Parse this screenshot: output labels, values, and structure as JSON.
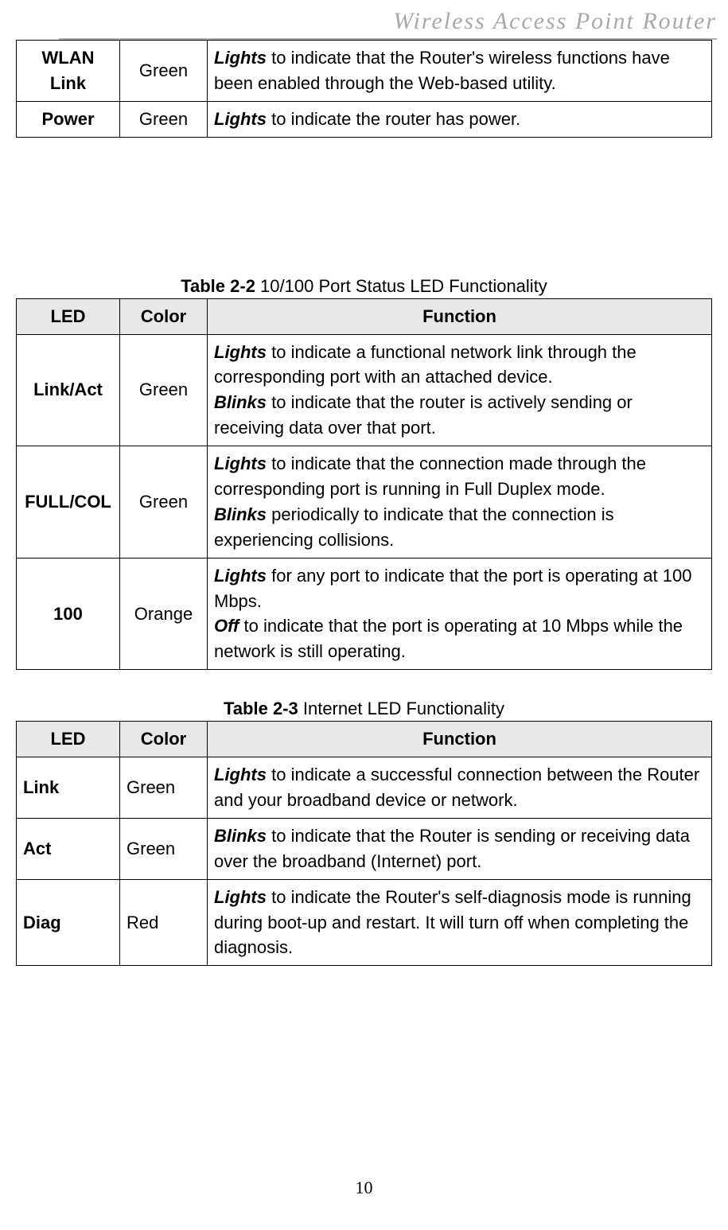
{
  "header": {
    "title": "Wireless  Access  Point  Router"
  },
  "table1": {
    "rows": [
      {
        "led": "WLAN Link",
        "color": "Green",
        "func": [
          {
            "style": "bi",
            "text": "Lights"
          },
          {
            "style": "",
            "text": " to indicate that the Router's wireless functions have been enabled through the Web-based utility."
          }
        ]
      },
      {
        "led": "Power",
        "color": "Green",
        "func": [
          {
            "style": "bi",
            "text": "Lights"
          },
          {
            "style": "",
            "text": " to indicate the router has power."
          }
        ]
      }
    ]
  },
  "table2": {
    "caption_label": "Table 2-2",
    "caption_text": " 10/100 Port Status LED Functionality",
    "headers": {
      "led": "LED",
      "color": "Color",
      "func": "Function"
    },
    "rows": [
      {
        "led": "Link/Act",
        "color": "Green",
        "func": [
          {
            "style": "bi",
            "text": "Lights"
          },
          {
            "style": "",
            "text": " to indicate a functional network link through the corresponding port with an attached device."
          },
          {
            "style": "br",
            "text": ""
          },
          {
            "style": "bi",
            "text": "Blinks"
          },
          {
            "style": "",
            "text": " to indicate that the router is actively sending or receiving data over that port."
          }
        ]
      },
      {
        "led": "FULL/COL",
        "color": "Green",
        "func": [
          {
            "style": "bi",
            "text": "Lights"
          },
          {
            "style": "",
            "text": " to indicate that the connection made through the corresponding port is running in Full Duplex mode."
          },
          {
            "style": "br",
            "text": ""
          },
          {
            "style": "bi",
            "text": "Blinks"
          },
          {
            "style": "",
            "text": " periodically to indicate that the connection is experiencing collisions."
          }
        ]
      },
      {
        "led": "100",
        "color": "Orange",
        "func": [
          {
            "style": "bi",
            "text": "Lights"
          },
          {
            "style": "",
            "text": " for any port to indicate that the port is operating at 100 Mbps."
          },
          {
            "style": "br",
            "text": ""
          },
          {
            "style": "bi",
            "text": "Off"
          },
          {
            "style": "",
            "text": " to indicate that the port is operating at 10 Mbps while the network is still operating."
          }
        ]
      }
    ]
  },
  "table3": {
    "caption_label": "Table 2-3",
    "caption_text": " Internet LED Functionality",
    "headers": {
      "led": "LED",
      "color": "Color",
      "func": "Function"
    },
    "rows": [
      {
        "led": "Link",
        "color": "Green",
        "func": [
          {
            "style": "bi",
            "text": "Lights"
          },
          {
            "style": "",
            "text": " to indicate a successful connection between the Router and your broadband device or network."
          }
        ]
      },
      {
        "led": "Act",
        "color": "Green",
        "func": [
          {
            "style": "bi",
            "text": "Blinks"
          },
          {
            "style": "",
            "text": " to indicate that the Router is sending or receiving data over the broadband (Internet) port."
          }
        ]
      },
      {
        "led": "Diag",
        "color": "Red",
        "func": [
          {
            "style": "bi",
            "text": "Lights"
          },
          {
            "style": "",
            "text": " to indicate the Router's self-diagnosis mode is running during boot-up and restart. It will turn off when completing the diagnosis."
          }
        ]
      }
    ]
  },
  "page_number": "10"
}
